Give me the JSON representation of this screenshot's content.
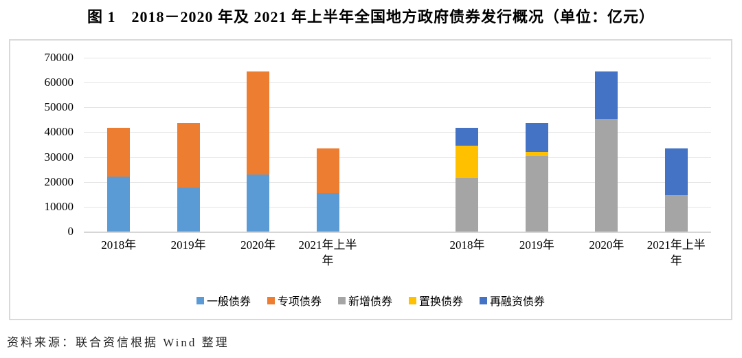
{
  "title": "图 1　2018－2020 年及 2021 年上半年全国地方政府债券发行概况（单位：亿元）",
  "source_note": "资料来源：联合资信根据 Wind 整理",
  "colors": {
    "general_bond": "#5B9BD5",
    "special_bond": "#ED7D31",
    "new_bond": "#A5A5A5",
    "swap_bond": "#FFC000",
    "refinancing_bond": "#4472C4",
    "gridline": "#e4e4e4",
    "axis_line": "#d6d6d6",
    "chart_border": "#d9d9d9"
  },
  "chart_data": {
    "type": "bar",
    "stacked": true,
    "unit_label": "亿元",
    "ylim": [
      0,
      70000
    ],
    "yticks": [
      0,
      10000,
      20000,
      30000,
      40000,
      50000,
      60000,
      70000
    ],
    "grid": true,
    "legend_position": "bottom",
    "groups": [
      {
        "categories": [
          "2018年",
          "2019年",
          "2020年",
          "2021年上半年"
        ],
        "series": [
          {
            "name": "一般债券",
            "color": "#5B9BD5",
            "values": [
              22200,
              17700,
              23000,
              15600
            ]
          },
          {
            "name": "专项债券",
            "color": "#ED7D31",
            "values": [
              19500,
              25900,
              41400,
              17800
            ]
          }
        ]
      },
      {
        "categories": [
          "2018年",
          "2019年",
          "2020年",
          "2021年上半年"
        ],
        "series": [
          {
            "name": "新增债券",
            "color": "#A5A5A5",
            "values": [
              21500,
              30500,
              45500,
              14800
            ]
          },
          {
            "name": "置换债券",
            "color": "#FFC000",
            "values": [
              13100,
              1600,
              0,
              0
            ]
          },
          {
            "name": "再融资债券",
            "color": "#4472C4",
            "values": [
              7100,
              11500,
              18900,
              18600
            ]
          }
        ]
      }
    ],
    "legend": [
      {
        "label": "一般债券",
        "color": "#5B9BD5"
      },
      {
        "label": "专项债券",
        "color": "#ED7D31"
      },
      {
        "label": "新增债券",
        "color": "#A5A5A5"
      },
      {
        "label": "置换债券",
        "color": "#FFC000"
      },
      {
        "label": "再融资债券",
        "color": "#4472C4"
      }
    ]
  }
}
